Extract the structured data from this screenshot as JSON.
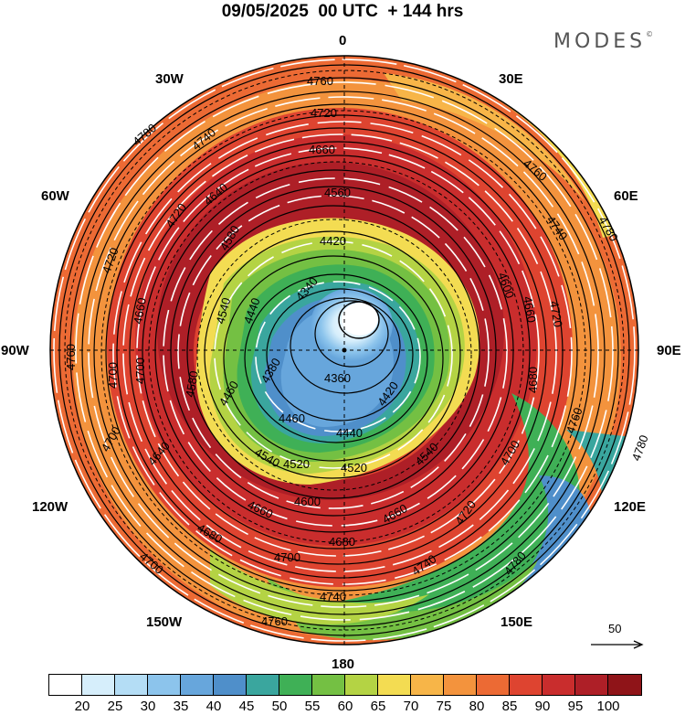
{
  "title": "09/05/2025  00 UTC  + 144 hrs",
  "brand": "MODES",
  "brand_mark": "©",
  "longitude_labels": {
    "n": "0",
    "e30": "30E",
    "e60": "60E",
    "e90": "90E",
    "e120": "120E",
    "e150": "150E",
    "s": "180",
    "w150": "150W",
    "w120": "120W",
    "w90": "90W",
    "w60": "60W",
    "w30": "30W"
  },
  "reference_vector": {
    "label": "50"
  },
  "colorbar": {
    "colors": [
      "#ffffff",
      "#d6eefb",
      "#b4ddf5",
      "#8cc4ec",
      "#67a6dc",
      "#4f8fca",
      "#3aa69e",
      "#3fb056",
      "#74c043",
      "#b4d344",
      "#f3dc52",
      "#f7b548",
      "#f3933d",
      "#ec6a34",
      "#de4430",
      "#c92d2d",
      "#ae1f27",
      "#8f1418"
    ],
    "tick_labels": [
      "20",
      "25",
      "30",
      "35",
      "40",
      "45",
      "50",
      "55",
      "60",
      "65",
      "70",
      "75",
      "80",
      "85",
      "90",
      "95",
      "100"
    ]
  },
  "contour_labels": {
    "c4760": "4760",
    "c4720": "4720",
    "c4780": "4780",
    "c4740": "4740",
    "c4660": "4660",
    "c4640": "4640",
    "c4560": "4560",
    "c4420": "4420",
    "c4600": "4600",
    "c4500": "4500",
    "c4540": "4540",
    "c4440": "4440",
    "c4340": "4340",
    "c4360": "4360",
    "c4380": "4380",
    "c4460": "4460",
    "c4520": "4520",
    "c4700": "4700",
    "c4680": "4680",
    "c4580": "4580"
  }
}
